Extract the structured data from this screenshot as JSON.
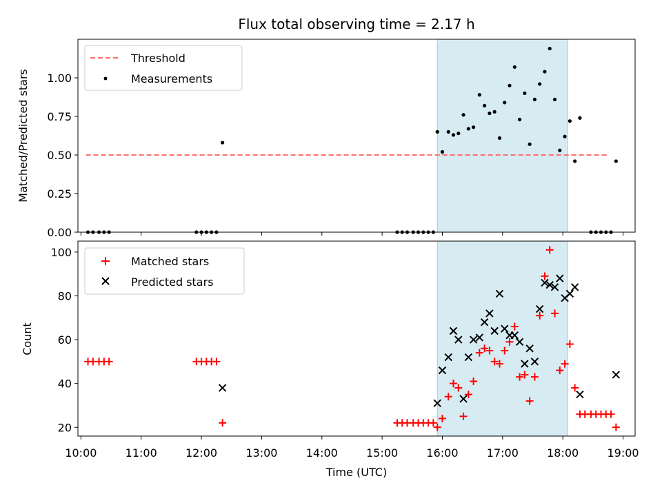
{
  "chart_data": [
    {
      "type": "scatter",
      "title": "Flux total observing time = 2.17 h",
      "xlabel": "",
      "ylabel": "Matched/Predicted stars",
      "xlim": [
        "09:57",
        "19:12"
      ],
      "ylim": [
        0,
        1.25
      ],
      "yticks": [
        "0.00",
        "0.25",
        "0.50",
        "0.75",
        "1.00"
      ],
      "grid": false,
      "legend_position": "top-left",
      "shaded_interval": [
        "15:55",
        "18:05"
      ],
      "threshold": {
        "name": "Threshold",
        "value": 0.5,
        "x_start": "10:05",
        "x_end": "18:45",
        "color": "#ff6e6e"
      },
      "series": [
        {
          "name": "Measurements",
          "color": "#000000",
          "points": [
            [
              "10:07",
              0
            ],
            [
              "10:12",
              0
            ],
            [
              "10:18",
              0
            ],
            [
              "10:23",
              0
            ],
            [
              "10:28",
              0
            ],
            [
              "11:55",
              0
            ],
            [
              "12:00",
              0
            ],
            [
              "12:05",
              0
            ],
            [
              "12:10",
              0
            ],
            [
              "12:15",
              0
            ],
            [
              "12:21",
              0.58
            ],
            [
              "15:15",
              0
            ],
            [
              "15:20",
              0
            ],
            [
              "15:25",
              0
            ],
            [
              "15:31",
              0
            ],
            [
              "15:36",
              0
            ],
            [
              "15:41",
              0
            ],
            [
              "15:46",
              0
            ],
            [
              "15:51",
              0
            ],
            [
              "15:55",
              0.65
            ],
            [
              "16:00",
              0.52
            ],
            [
              "16:06",
              0.65
            ],
            [
              "16:11",
              0.63
            ],
            [
              "16:16",
              0.64
            ],
            [
              "16:21",
              0.76
            ],
            [
              "16:26",
              0.67
            ],
            [
              "16:31",
              0.68
            ],
            [
              "16:37",
              0.89
            ],
            [
              "16:42",
              0.82
            ],
            [
              "16:47",
              0.77
            ],
            [
              "16:52",
              0.78
            ],
            [
              "16:57",
              0.61
            ],
            [
              "17:02",
              0.84
            ],
            [
              "17:07",
              0.95
            ],
            [
              "17:12",
              1.07
            ],
            [
              "17:17",
              0.73
            ],
            [
              "17:22",
              0.9
            ],
            [
              "17:27",
              0.57
            ],
            [
              "17:32",
              0.86
            ],
            [
              "17:37",
              0.96
            ],
            [
              "17:42",
              1.04
            ],
            [
              "17:47",
              1.19
            ],
            [
              "17:52",
              0.86
            ],
            [
              "17:57",
              0.53
            ],
            [
              "18:02",
              0.62
            ],
            [
              "18:07",
              0.72
            ],
            [
              "18:12",
              0.46
            ],
            [
              "18:17",
              0.74
            ],
            [
              "18:28",
              0
            ],
            [
              "18:33",
              0
            ],
            [
              "18:38",
              0
            ],
            [
              "18:43",
              0
            ],
            [
              "18:48",
              0
            ],
            [
              "18:53",
              0.46
            ]
          ]
        }
      ]
    },
    {
      "type": "scatter",
      "title": "",
      "xlabel": "Time (UTC)",
      "ylabel": "Count",
      "xlim": [
        "09:57",
        "19:12"
      ],
      "ylim": [
        16,
        105
      ],
      "yticks": [
        "20",
        "40",
        "60",
        "80",
        "100"
      ],
      "xticks": [
        "10:00",
        "11:00",
        "12:00",
        "13:00",
        "14:00",
        "15:00",
        "16:00",
        "17:00",
        "18:00",
        "19:00"
      ],
      "grid": false,
      "legend_position": "top-left",
      "shaded_interval": [
        "15:55",
        "18:05"
      ],
      "series": [
        {
          "name": "Matched stars",
          "color": "#ff0000",
          "marker": "+",
          "points": [
            [
              "10:07",
              50
            ],
            [
              "10:12",
              50
            ],
            [
              "10:18",
              50
            ],
            [
              "10:23",
              50
            ],
            [
              "10:28",
              50
            ],
            [
              "11:55",
              50
            ],
            [
              "12:00",
              50
            ],
            [
              "12:05",
              50
            ],
            [
              "12:10",
              50
            ],
            [
              "12:15",
              50
            ],
            [
              "12:21",
              22
            ],
            [
              "15:15",
              22
            ],
            [
              "15:20",
              22
            ],
            [
              "15:25",
              22
            ],
            [
              "15:31",
              22
            ],
            [
              "15:36",
              22
            ],
            [
              "15:41",
              22
            ],
            [
              "15:46",
              22
            ],
            [
              "15:51",
              22
            ],
            [
              "15:55",
              20
            ],
            [
              "16:00",
              24
            ],
            [
              "16:06",
              34
            ],
            [
              "16:11",
              40
            ],
            [
              "16:16",
              38
            ],
            [
              "16:21",
              25
            ],
            [
              "16:26",
              35
            ],
            [
              "16:31",
              41
            ],
            [
              "16:37",
              54
            ],
            [
              "16:42",
              56
            ],
            [
              "16:47",
              55
            ],
            [
              "16:52",
              50
            ],
            [
              "16:57",
              49
            ],
            [
              "17:02",
              55
            ],
            [
              "17:07",
              59
            ],
            [
              "17:12",
              66
            ],
            [
              "17:17",
              43
            ],
            [
              "17:22",
              44
            ],
            [
              "17:27",
              32
            ],
            [
              "17:32",
              43
            ],
            [
              "17:37",
              71
            ],
            [
              "17:42",
              89
            ],
            [
              "17:47",
              101
            ],
            [
              "17:52",
              72
            ],
            [
              "17:57",
              46
            ],
            [
              "18:02",
              49
            ],
            [
              "18:07",
              58
            ],
            [
              "18:12",
              38
            ],
            [
              "18:17",
              26
            ],
            [
              "18:22",
              26
            ],
            [
              "18:28",
              26
            ],
            [
              "18:33",
              26
            ],
            [
              "18:38",
              26
            ],
            [
              "18:43",
              26
            ],
            [
              "18:48",
              26
            ],
            [
              "18:53",
              20
            ]
          ]
        },
        {
          "name": "Predicted stars",
          "color": "#000000",
          "marker": "x",
          "points": [
            [
              "12:21",
              38
            ],
            [
              "15:55",
              31
            ],
            [
              "16:00",
              46
            ],
            [
              "16:06",
              52
            ],
            [
              "16:11",
              64
            ],
            [
              "16:16",
              60
            ],
            [
              "16:21",
              33
            ],
            [
              "16:26",
              52
            ],
            [
              "16:31",
              60
            ],
            [
              "16:37",
              61
            ],
            [
              "16:42",
              68
            ],
            [
              "16:47",
              72
            ],
            [
              "16:52",
              64
            ],
            [
              "16:57",
              81
            ],
            [
              "17:02",
              65
            ],
            [
              "17:07",
              62
            ],
            [
              "17:12",
              62
            ],
            [
              "17:17",
              59
            ],
            [
              "17:22",
              49
            ],
            [
              "17:27",
              56
            ],
            [
              "17:32",
              50
            ],
            [
              "17:37",
              74
            ],
            [
              "17:42",
              86
            ],
            [
              "17:47",
              85
            ],
            [
              "17:52",
              84
            ],
            [
              "17:57",
              88
            ],
            [
              "18:02",
              79
            ],
            [
              "18:07",
              81
            ],
            [
              "18:12",
              84
            ],
            [
              "18:17",
              35
            ],
            [
              "18:53",
              44
            ]
          ]
        }
      ]
    }
  ]
}
